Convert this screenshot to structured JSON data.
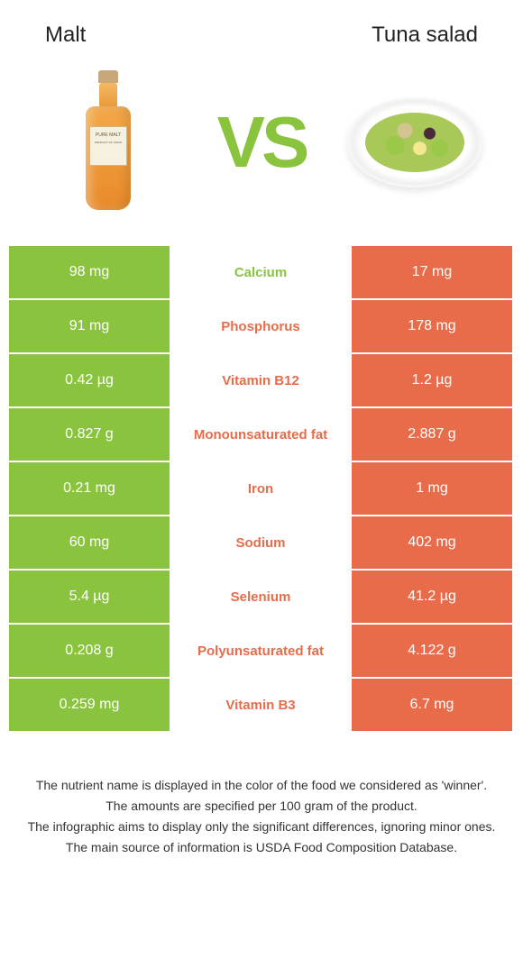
{
  "header": {
    "left_title": "Malt",
    "right_title": "Tuna salad"
  },
  "hero": {
    "vs_label": "VS",
    "bottle_label_line1": "PURE MALT",
    "bottle_label_line2": "PRODUCT OF JAPAN"
  },
  "colors": {
    "left": "#8ac43e",
    "right": "#e86c4a",
    "background": "#ffffff",
    "text": "#333333"
  },
  "comparison": {
    "rows": [
      {
        "left": "98 mg",
        "label": "Calcium",
        "right": "17 mg",
        "winner": "left"
      },
      {
        "left": "91 mg",
        "label": "Phosphorus",
        "right": "178 mg",
        "winner": "right"
      },
      {
        "left": "0.42 µg",
        "label": "Vitamin B12",
        "right": "1.2 µg",
        "winner": "right"
      },
      {
        "left": "0.827 g",
        "label": "Monounsaturated fat",
        "right": "2.887 g",
        "winner": "right"
      },
      {
        "left": "0.21 mg",
        "label": "Iron",
        "right": "1 mg",
        "winner": "right"
      },
      {
        "left": "60 mg",
        "label": "Sodium",
        "right": "402 mg",
        "winner": "right"
      },
      {
        "left": "5.4 µg",
        "label": "Selenium",
        "right": "41.2 µg",
        "winner": "right"
      },
      {
        "left": "0.208 g",
        "label": "Polyunsaturated fat",
        "right": "4.122 g",
        "winner": "right"
      },
      {
        "left": "0.259 mg",
        "label": "Vitamin B3",
        "right": "6.7 mg",
        "winner": "right"
      }
    ]
  },
  "footer": {
    "line1": "The nutrient name is displayed in the color of the food we considered as 'winner'.",
    "line2": "The amounts are specified per 100 gram of the product.",
    "line3": "The infographic aims to display only the significant differences, ignoring minor ones.",
    "line4": "The main source of information is USDA Food Composition Database."
  }
}
